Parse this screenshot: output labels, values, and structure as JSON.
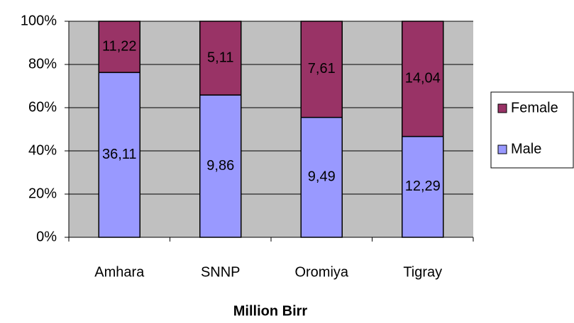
{
  "chart_data": {
    "type": "bar",
    "stack": "percent",
    "x_label": "Million Birr",
    "categories": [
      "Amhara",
      "SNNP",
      "Oromiya",
      "Tigray"
    ],
    "series": [
      {
        "name": "Male",
        "color": "#9999ff",
        "values": [
          36.11,
          9.86,
          9.49,
          12.29
        ],
        "value_labels": [
          "36,11",
          "9,86",
          "9,49",
          "12,29"
        ]
      },
      {
        "name": "Female",
        "color": "#993366",
        "values": [
          11.22,
          5.11,
          7.61,
          14.04
        ],
        "value_labels": [
          "11,22",
          "5,11",
          "7,61",
          "14,04"
        ]
      }
    ],
    "ylim": [
      0,
      100
    ],
    "yticks": [
      {
        "value": 0,
        "label": "0%"
      },
      {
        "value": 20,
        "label": "20%"
      },
      {
        "value": 40,
        "label": "40%"
      },
      {
        "value": 60,
        "label": "60%"
      },
      {
        "value": 80,
        "label": "80%"
      },
      {
        "value": 100,
        "label": "100%"
      }
    ],
    "grid": true,
    "plot_background": "#c0c0c0",
    "legend": "right"
  }
}
